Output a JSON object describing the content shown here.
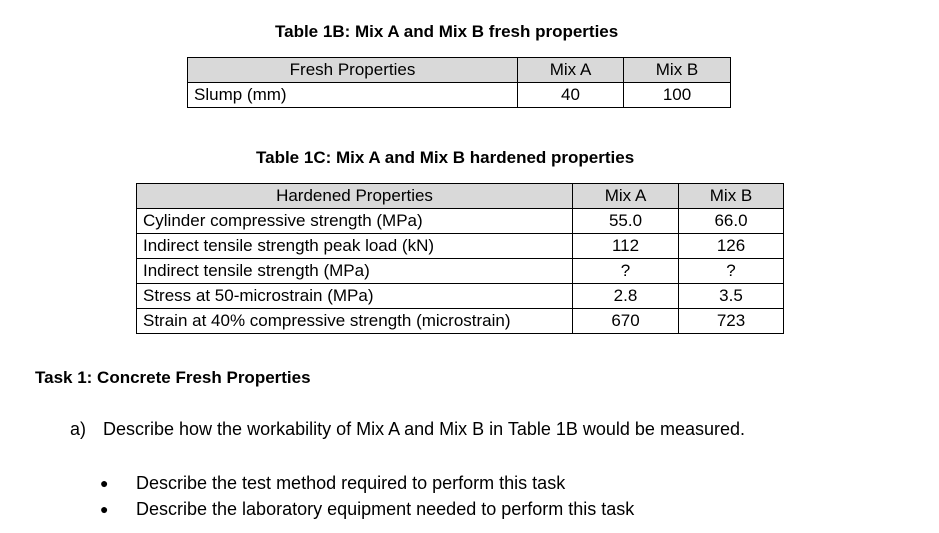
{
  "table_1b": {
    "caption": "Table 1B: Mix A and Mix B fresh properties",
    "headers": [
      "Fresh Properties",
      "Mix A",
      "Mix B"
    ],
    "rows": [
      [
        "Slump (mm)",
        "40",
        "100"
      ]
    ]
  },
  "table_1c": {
    "caption": "Table 1C: Mix A and Mix B hardened properties",
    "headers": [
      "Hardened Properties",
      "Mix A",
      "Mix B"
    ],
    "rows": [
      [
        "Cylinder compressive strength (MPa)",
        "55.0",
        "66.0"
      ],
      [
        "Indirect tensile strength peak load (kN)",
        "112",
        "126"
      ],
      [
        "Indirect tensile strength (MPa)",
        "?",
        "?"
      ],
      [
        "Stress at 50-microstrain (MPa)",
        "2.8",
        "3.5"
      ],
      [
        "Strain at 40% compressive strength (microstrain)",
        "670",
        "723"
      ]
    ]
  },
  "task": {
    "heading": "Task 1: Concrete Fresh Properties",
    "question_marker": "a)",
    "question_text": "Describe how the workability of Mix A and Mix B in Table 1B would be measured.",
    "bullet_glyph": "●",
    "bullets": [
      "Describe the test method required to perform this task",
      "Describe the laboratory equipment needed to perform this task"
    ]
  }
}
